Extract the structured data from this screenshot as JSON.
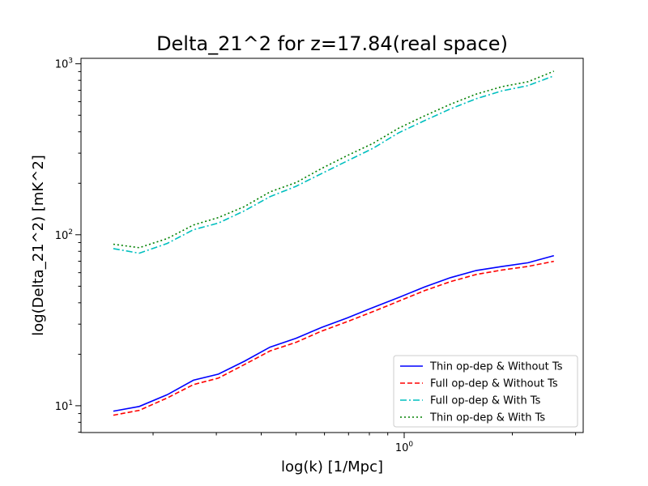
{
  "chart_data": {
    "type": "line",
    "title": "Delta_21^2 for z=17.84(real space)",
    "xlabel": "log(k) [1/Mpc]",
    "ylabel": "log(Delta_21^2) [mK^2]",
    "xscale": "log",
    "yscale": "log",
    "xlim": [
      0.126,
      3.15
    ],
    "ylim": [
      6.97,
      1076
    ],
    "x_tick_labels": [
      {
        "value": 1,
        "label": "10^0"
      }
    ],
    "y_tick_labels": [
      {
        "value": 10,
        "label": "10^1"
      },
      {
        "value": 100,
        "label": "10^2"
      },
      {
        "value": 1000,
        "label": "10^3"
      }
    ],
    "x": [
      0.155,
      0.183,
      0.219,
      0.259,
      0.304,
      0.359,
      0.423,
      0.5,
      0.589,
      0.693,
      0.818,
      0.966,
      1.14,
      1.345,
      1.588,
      1.875,
      2.212,
      2.61
    ],
    "series": [
      {
        "name": "Thin op-dep & Without Ts",
        "color": "#0000ff",
        "style": "solid",
        "values": [
          9.3,
          9.9,
          11.6,
          14.1,
          15.3,
          18.2,
          22.0,
          24.8,
          28.7,
          32.6,
          37.5,
          43.0,
          49.5,
          56.1,
          61.8,
          65.3,
          68.6,
          75.5
        ]
      },
      {
        "name": "Full op-dep & Without Ts",
        "color": "#ff0000",
        "style": "dashed",
        "values": [
          8.8,
          9.4,
          11.1,
          13.3,
          14.5,
          17.4,
          20.9,
          23.5,
          27.3,
          31.0,
          35.5,
          40.9,
          47.1,
          53.2,
          58.6,
          62.2,
          65.3,
          69.9
        ]
      },
      {
        "name": "Full op-dep & With Ts",
        "color": "#00bfbf",
        "style": "dashdot",
        "values": [
          83,
          78,
          89,
          107,
          117,
          138,
          167,
          192,
          228,
          270,
          320,
          395,
          465,
          545,
          625,
          695,
          745,
          850
        ]
      },
      {
        "name": "Thin op-dep & With Ts",
        "color": "#008000",
        "style": "dotted",
        "values": [
          88,
          84,
          95,
          114,
          126,
          146,
          178,
          202,
          244,
          290,
          342,
          420,
          496,
          580,
          665,
          735,
          785,
          905
        ]
      }
    ],
    "legend_position": "lower-right",
    "grid": false
  }
}
